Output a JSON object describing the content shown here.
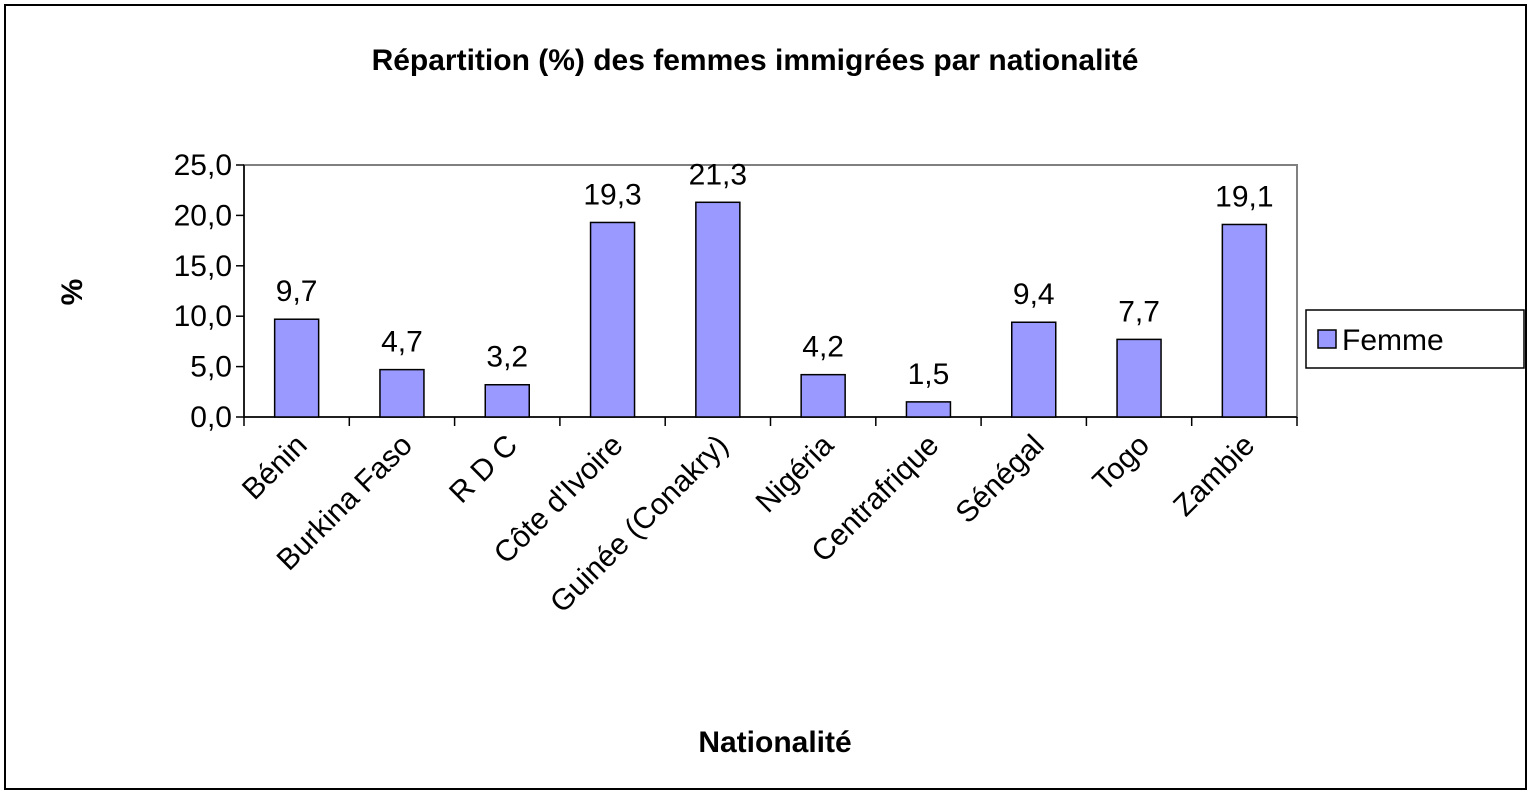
{
  "chart_data": {
    "type": "bar",
    "title": "Répartition (%) des femmes immigrées par nationalité",
    "x_label": "Nationalité",
    "y_label": "%",
    "categories": [
      "Bénin",
      "Burkina Faso",
      "R D C",
      "Côte d'Ivoire",
      "Guinée (Conakry)",
      "Nigéria",
      "Centrafrique",
      "Sénégal",
      "Togo",
      "Zambie"
    ],
    "series": [
      {
        "name": "Femme",
        "color": "#9999ff",
        "values": [
          9.7,
          4.7,
          3.2,
          19.3,
          21.3,
          4.2,
          1.5,
          9.4,
          7.7,
          19.1
        ],
        "value_labels": [
          "9,7",
          "4,7",
          "3,2",
          "19,3",
          "21,3",
          "4,2",
          "1,5",
          "9,4",
          "7,7",
          "19,1"
        ]
      }
    ],
    "ylim": [
      0,
      25
    ],
    "yticks": [
      {
        "value": 0,
        "label": "0,0"
      },
      {
        "value": 5,
        "label": "5,0"
      },
      {
        "value": 10,
        "label": "10,0"
      },
      {
        "value": 15,
        "label": "15,0"
      },
      {
        "value": 20,
        "label": "20,0"
      },
      {
        "value": 25,
        "label": "25,0"
      }
    ],
    "grid": false,
    "legend": "right"
  }
}
